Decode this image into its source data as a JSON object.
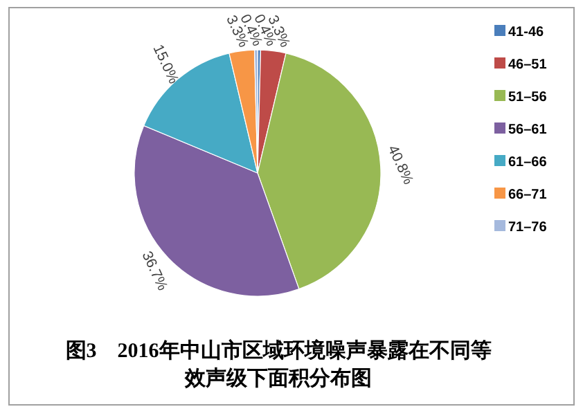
{
  "chart_data": {
    "type": "pie",
    "title": "图3　2016年中山市区域环境噪声暴露在不同等效声级下面积分布图",
    "categories": [
      "41-46",
      "46–51",
      "51–56",
      "56–61",
      "61–66",
      "66–71",
      "71–76"
    ],
    "values": [
      0.4,
      3.3,
      40.8,
      36.7,
      15.0,
      3.3,
      0.4
    ],
    "colors": [
      "#4a7ebb",
      "#be4b48",
      "#98b954",
      "#7d60a0",
      "#46aac5",
      "#f79646",
      "#a5b9dd"
    ],
    "value_labels": [
      "0.4%",
      "3.3%",
      "40.8%",
      "36.7%",
      "15.0%",
      "3.3%",
      "0.4%"
    ],
    "legend": "right"
  }
}
